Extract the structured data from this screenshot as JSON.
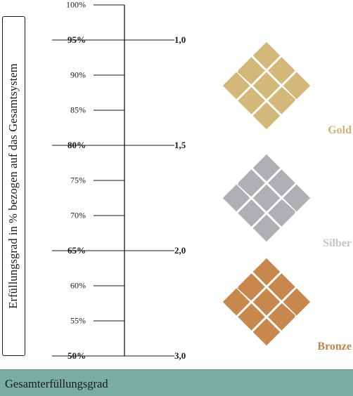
{
  "axis_title": "Erfüllungsgrad in % bezogen auf das Gesamtsystem",
  "percent_ticks": [
    {
      "label": "100%",
      "value": 100,
      "major": false
    },
    {
      "label": "95%",
      "value": 95,
      "major": true
    },
    {
      "label": "90%",
      "value": 90,
      "major": false
    },
    {
      "label": "85%",
      "value": 85,
      "major": false
    },
    {
      "label": "80%",
      "value": 80,
      "major": true
    },
    {
      "label": "75%",
      "value": 75,
      "major": false
    },
    {
      "label": "70%",
      "value": 70,
      "major": false
    },
    {
      "label": "65%",
      "value": 65,
      "major": true
    },
    {
      "label": "60%",
      "value": 60,
      "major": false
    },
    {
      "label": "55%",
      "value": 55,
      "major": false
    },
    {
      "label": "50%",
      "value": 50,
      "major": true
    }
  ],
  "grade_ticks": [
    {
      "label": "1,0",
      "at_percent": 95
    },
    {
      "label": "1,5",
      "at_percent": 80
    },
    {
      "label": "2,0",
      "at_percent": 65
    },
    {
      "label": "3,0",
      "at_percent": 50
    }
  ],
  "medals": [
    {
      "name": "Gold",
      "color": "#d4b87a"
    },
    {
      "name": "Silber",
      "color": "#aeb0b4"
    },
    {
      "name": "Bronze",
      "color": "#c8874c"
    }
  ],
  "label_colors": {
    "Gold": "#cdb279",
    "Silber": "#c3c4c7",
    "Bronze": "#c2824c"
  },
  "footer": {
    "label": "Gesamterfüllungsgrad"
  }
}
